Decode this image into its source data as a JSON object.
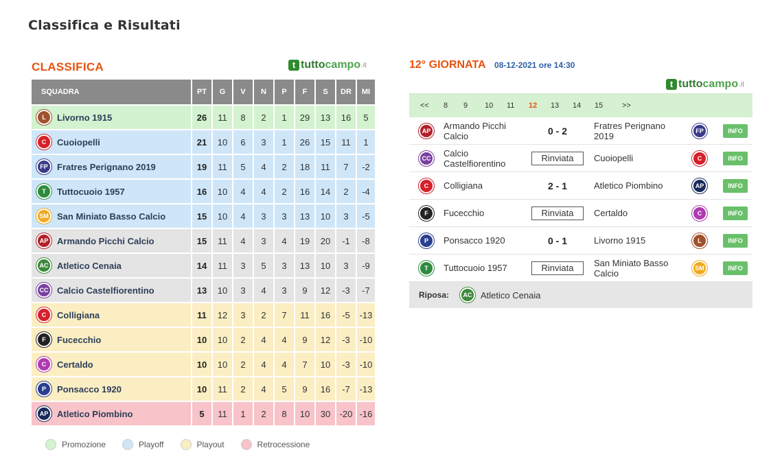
{
  "page_title": "Classifica e Risultati",
  "logo": {
    "icon": "t",
    "part1": "tutto",
    "part2": "campo",
    "tld": ".it"
  },
  "standings": {
    "title": "CLASSIFICA",
    "headers": [
      "SQUADRA",
      "PT",
      "G",
      "V",
      "N",
      "P",
      "F",
      "S",
      "DR",
      "MI"
    ],
    "rows": [
      {
        "team": "Livorno 1915",
        "zone": "promo",
        "crest_color": "#a0522d",
        "stats": [
          "26",
          "11",
          "8",
          "2",
          "1",
          "29",
          "13",
          "16",
          "5"
        ]
      },
      {
        "team": "Cuoiopelli",
        "zone": "playoff",
        "crest_color": "#d6202a",
        "stats": [
          "21",
          "10",
          "6",
          "3",
          "1",
          "26",
          "15",
          "11",
          "1"
        ]
      },
      {
        "team": "Fratres Perignano 2019",
        "zone": "playoff",
        "crest_color": "#3b3a8c",
        "stats": [
          "19",
          "11",
          "5",
          "4",
          "2",
          "18",
          "11",
          "7",
          "-2"
        ]
      },
      {
        "team": "Tuttocuoio 1957",
        "zone": "playoff",
        "crest_color": "#2e8b3e",
        "stats": [
          "16",
          "10",
          "4",
          "4",
          "2",
          "16",
          "14",
          "2",
          "-4"
        ]
      },
      {
        "team": "San Miniato Basso Calcio",
        "zone": "playoff",
        "crest_color": "#f2a81b",
        "stats": [
          "15",
          "10",
          "4",
          "3",
          "3",
          "13",
          "10",
          "3",
          "-5"
        ]
      },
      {
        "team": "Armando Picchi Calcio",
        "zone": "normal",
        "crest_color": "#b3202a",
        "stats": [
          "15",
          "11",
          "4",
          "3",
          "4",
          "19",
          "20",
          "-1",
          "-8"
        ]
      },
      {
        "team": "Atletico Cenaia",
        "zone": "normal",
        "crest_color": "#3d8a3d",
        "stats": [
          "14",
          "11",
          "3",
          "5",
          "3",
          "13",
          "10",
          "3",
          "-9"
        ]
      },
      {
        "team": "Calcio Castelfiorentino",
        "zone": "normal",
        "crest_color": "#7b3fa0",
        "stats": [
          "13",
          "10",
          "3",
          "4",
          "3",
          "9",
          "12",
          "-3",
          "-7"
        ]
      },
      {
        "team": "Colligiana",
        "zone": "playout",
        "crest_color": "#d6202a",
        "stats": [
          "11",
          "12",
          "3",
          "2",
          "7",
          "11",
          "16",
          "-5",
          "-13"
        ]
      },
      {
        "team": "Fucecchio",
        "zone": "playout",
        "crest_color": "#222222",
        "stats": [
          "10",
          "10",
          "2",
          "4",
          "4",
          "9",
          "12",
          "-3",
          "-10"
        ]
      },
      {
        "team": "Certaldo",
        "zone": "playout",
        "crest_color": "#b03ab0",
        "stats": [
          "10",
          "10",
          "2",
          "4",
          "4",
          "7",
          "10",
          "-3",
          "-10"
        ]
      },
      {
        "team": "Ponsacco 1920",
        "zone": "playout",
        "crest_color": "#2a3f8f",
        "stats": [
          "10",
          "11",
          "2",
          "4",
          "5",
          "9",
          "16",
          "-7",
          "-13"
        ]
      },
      {
        "team": "Atletico Piombino",
        "zone": "relegation",
        "crest_color": "#1a2a5a",
        "stats": [
          "5",
          "11",
          "1",
          "2",
          "8",
          "10",
          "30",
          "-20",
          "-16"
        ]
      }
    ]
  },
  "legend": [
    {
      "label": "Promozione",
      "color": "#d3f2cf"
    },
    {
      "label": "Playoff",
      "color": "#cfe6f8"
    },
    {
      "label": "Playout",
      "color": "#fbeec3"
    },
    {
      "label": "Retrocessione",
      "color": "#f8c3c9"
    }
  ],
  "round": {
    "title": "12° GIORNATA",
    "date": "08-12-2021 ore 14:30",
    "nav": [
      "<<",
      "8",
      "9",
      "10",
      "11",
      "12",
      "13",
      "14",
      "15",
      ">>"
    ],
    "active": "12",
    "matches": [
      {
        "home": "Armando Picchi Calcio",
        "home_color": "#b3202a",
        "result": "0 - 2",
        "postponed": false,
        "away": "Fratres Perignano 2019",
        "away_color": "#3b3a8c",
        "info": "INFO"
      },
      {
        "home": "Calcio Castelfiorentino",
        "home_color": "#7b3fa0",
        "result": "Rinviata",
        "postponed": true,
        "away": "Cuoiopelli",
        "away_color": "#d6202a",
        "info": "INFO"
      },
      {
        "home": "Colligiana",
        "home_color": "#d6202a",
        "result": "2 - 1",
        "postponed": false,
        "away": "Atletico Piombino",
        "away_color": "#1a2a5a",
        "info": "INFO"
      },
      {
        "home": "Fucecchio",
        "home_color": "#222222",
        "result": "Rinviata",
        "postponed": true,
        "away": "Certaldo",
        "away_color": "#b03ab0",
        "info": "INFO"
      },
      {
        "home": "Ponsacco 1920",
        "home_color": "#2a3f8f",
        "result": "0 - 1",
        "postponed": false,
        "away": "Livorno 1915",
        "away_color": "#a0522d",
        "info": "INFO"
      },
      {
        "home": "Tuttocuoio 1957",
        "home_color": "#2e8b3e",
        "result": "Rinviata",
        "postponed": true,
        "away": "San Miniato Basso Calcio",
        "away_color": "#f2a81b",
        "info": "INFO"
      }
    ],
    "rest_label": "Riposa:",
    "rest_team": "Atletico Cenaia",
    "rest_color": "#3d8a3d"
  }
}
